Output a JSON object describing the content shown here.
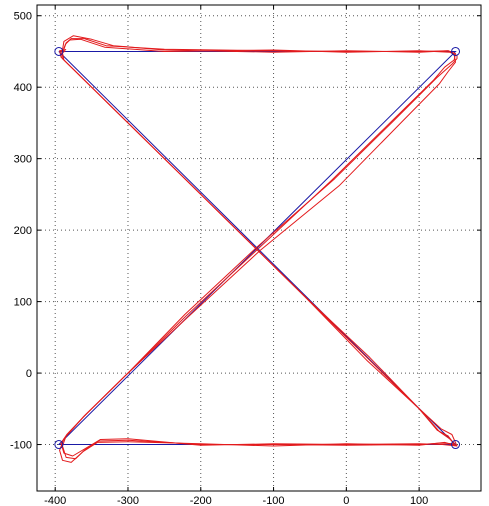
{
  "chart_data": {
    "type": "line",
    "title": "",
    "xlabel": "",
    "ylabel": "",
    "xlim": [
      -425,
      185
    ],
    "ylim": [
      -165,
      515
    ],
    "grid": true,
    "x_ticks": [
      -400,
      -300,
      -200,
      -100,
      0,
      100
    ],
    "y_ticks": [
      -100,
      0,
      100,
      200,
      300,
      400,
      500
    ],
    "x_tick_labels": [
      "-400",
      "-300",
      "-200",
      "-100",
      "0",
      "100"
    ],
    "y_tick_labels": [
      "-100",
      "0",
      "100",
      "200",
      "300",
      "400",
      "500"
    ],
    "reference_path": {
      "color": "#1a1aa6",
      "points": [
        [
          -395,
          450
        ],
        [
          150,
          450
        ],
        [
          -395,
          -100
        ],
        [
          150,
          -100
        ],
        [
          -395,
          450
        ]
      ]
    },
    "waypoints": {
      "color": "#1a1aa6",
      "points": [
        [
          -395,
          450
        ],
        [
          150,
          450
        ],
        [
          -395,
          -100
        ],
        [
          150,
          -100
        ]
      ]
    },
    "traces": [
      {
        "color": "#e31a1c",
        "points": [
          [
            -388,
            453
          ],
          [
            -385,
            462
          ],
          [
            -378,
            468
          ],
          [
            -360,
            468
          ],
          [
            -330,
            458
          ],
          [
            -250,
            453
          ],
          [
            -100,
            451
          ],
          [
            0,
            450
          ],
          [
            100,
            450
          ],
          [
            140,
            451
          ],
          [
            150,
            447
          ],
          [
            148,
            438
          ],
          [
            135,
            428
          ],
          [
            120,
            410
          ],
          [
            60,
            350
          ],
          [
            -20,
            270
          ],
          [
            -120,
            175
          ],
          [
            -220,
            80
          ],
          [
            -300,
            0
          ],
          [
            -360,
            -60
          ],
          [
            -385,
            -88
          ],
          [
            -390,
            -102
          ],
          [
            -385,
            -118
          ],
          [
            -372,
            -120
          ],
          [
            -360,
            -108
          ],
          [
            -340,
            -95
          ],
          [
            -300,
            -94
          ],
          [
            -200,
            -100
          ],
          [
            -100,
            -100
          ],
          [
            0,
            -101
          ],
          [
            100,
            -100
          ],
          [
            130,
            -98
          ],
          [
            148,
            -99
          ],
          [
            140,
            -88
          ],
          [
            125,
            -80
          ],
          [
            100,
            -50
          ],
          [
            30,
            20
          ],
          [
            -60,
            110
          ],
          [
            -150,
            200
          ],
          [
            -240,
            290
          ],
          [
            -320,
            370
          ],
          [
            -370,
            420
          ],
          [
            -390,
            440
          ],
          [
            -392,
            450
          ],
          [
            -385,
            453
          ]
        ]
      },
      {
        "color": "#e31a1c",
        "points": [
          [
            -390,
            452
          ],
          [
            -388,
            464
          ],
          [
            -375,
            472
          ],
          [
            -350,
            467
          ],
          [
            -320,
            458
          ],
          [
            -250,
            452
          ],
          [
            -100,
            449
          ],
          [
            0,
            451
          ],
          [
            100,
            449
          ],
          [
            140,
            451
          ],
          [
            148,
            446
          ],
          [
            150,
            435
          ],
          [
            140,
            422
          ],
          [
            128,
            405
          ],
          [
            70,
            345
          ],
          [
            -10,
            262
          ],
          [
            -118,
            172
          ],
          [
            -218,
            78
          ],
          [
            -302,
            -2
          ],
          [
            -362,
            -62
          ],
          [
            -388,
            -92
          ],
          [
            -394,
            -108
          ],
          [
            -390,
            -122
          ],
          [
            -378,
            -125
          ],
          [
            -362,
            -110
          ],
          [
            -342,
            -97
          ],
          [
            -300,
            -96
          ],
          [
            -200,
            -99
          ],
          [
            -100,
            -102
          ],
          [
            0,
            -99
          ],
          [
            100,
            -101
          ],
          [
            135,
            -97
          ],
          [
            150,
            -101
          ],
          [
            142,
            -92
          ],
          [
            128,
            -82
          ],
          [
            102,
            -52
          ],
          [
            32,
            22
          ],
          [
            -62,
            112
          ],
          [
            -152,
            202
          ],
          [
            -242,
            292
          ],
          [
            -322,
            372
          ],
          [
            -372,
            422
          ],
          [
            -392,
            442
          ],
          [
            -394,
            451
          ],
          [
            -388,
            452
          ]
        ]
      },
      {
        "color": "#e31a1c",
        "points": [
          [
            -389,
            451
          ],
          [
            -386,
            460
          ],
          [
            -380,
            466
          ],
          [
            -365,
            467
          ],
          [
            -332,
            456
          ],
          [
            -250,
            450
          ],
          [
            -100,
            452
          ],
          [
            0,
            449
          ],
          [
            100,
            451
          ],
          [
            142,
            449
          ],
          [
            152,
            444
          ],
          [
            152,
            440
          ],
          [
            145,
            432
          ],
          [
            124,
            413
          ],
          [
            64,
            352
          ],
          [
            -16,
            272
          ],
          [
            -122,
            177
          ],
          [
            -222,
            82
          ],
          [
            -298,
            2
          ],
          [
            -358,
            -58
          ],
          [
            -384,
            -86
          ],
          [
            -392,
            -98
          ],
          [
            -388,
            -112
          ],
          [
            -376,
            -116
          ],
          [
            -356,
            -104
          ],
          [
            -338,
            -93
          ],
          [
            -300,
            -92
          ],
          [
            -200,
            -101
          ],
          [
            -100,
            -99
          ],
          [
            0,
            -100
          ],
          [
            100,
            -99
          ],
          [
            132,
            -100
          ],
          [
            152,
            -102
          ],
          [
            145,
            -86
          ],
          [
            130,
            -78
          ],
          [
            98,
            -48
          ],
          [
            28,
            18
          ],
          [
            -58,
            108
          ],
          [
            -148,
            198
          ],
          [
            -238,
            288
          ],
          [
            -318,
            368
          ],
          [
            -368,
            418
          ],
          [
            -388,
            438
          ],
          [
            -390,
            448
          ],
          [
            -386,
            451
          ]
        ]
      }
    ]
  }
}
